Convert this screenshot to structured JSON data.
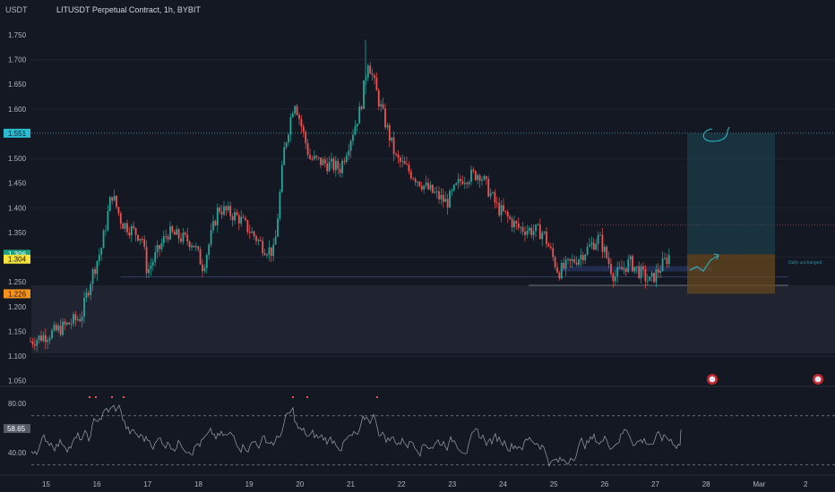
{
  "header": {
    "unit": "USDT",
    "title": "LITUSDT Perpetual Contract, 1h, BYBIT"
  },
  "colors": {
    "background": "#141823",
    "up": "#26a69a",
    "down": "#ef5350",
    "grid": "#1f2433",
    "text": "#b2b5be",
    "rsi_line": "#9aa0aa",
    "resistance": "#5aa7b5",
    "range_up": "#1d4a55",
    "range_down": "#6b4a1e",
    "demand_zone": "#202431",
    "last_price": "#1d9f7f",
    "yellow_tag": "#f5e23a",
    "orange_tag": "#f7931a",
    "cyan_tag": "#2bbbd1"
  },
  "price_axis": {
    "ticks": [
      "1.750",
      "1.700",
      "1.650",
      "1.600",
      "1.550",
      "1.500",
      "1.450",
      "1.400",
      "1.350",
      "1.300",
      "1.250",
      "1.200",
      "1.150",
      "1.100",
      "1.050"
    ],
    "tags": [
      {
        "name": "resistance-tag",
        "label": "1.551",
        "value": 1.551,
        "color": "#2bbbd1",
        "text_color": "#0e1a22"
      },
      {
        "name": "last-price-tag",
        "label": "1.306",
        "value": 1.306,
        "color": "#1d9f7f",
        "text_color": "#ffffff"
      },
      {
        "name": "prev-close-tag",
        "label": "1.304",
        "value": 1.296,
        "color": "#f5e23a",
        "text_color": "#111111"
      },
      {
        "name": "stop-tag",
        "label": "1.226",
        "value": 1.226,
        "color": "#f7931a",
        "text_color": "#111111"
      }
    ]
  },
  "rsi_axis": {
    "ticks": [
      "80.00",
      "40.00"
    ],
    "current": "58.65",
    "current_value": 58.65,
    "upper_band": 70,
    "lower_band": 30
  },
  "time_axis": {
    "labels": [
      "15",
      "16",
      "17",
      "18",
      "19",
      "20",
      "21",
      "22",
      "23",
      "24",
      "25",
      "26",
      "27",
      "28",
      "Mar",
      "2"
    ]
  },
  "annotations": {
    "projection_note": "Daily unchanged",
    "events": [
      "economic-event-1",
      "economic-event-2"
    ]
  },
  "chart_data": {
    "type": "candlestick",
    "symbol": "LITUSDT",
    "interval": "1h",
    "exchange": "BYBIT",
    "ylim": [
      1.08,
      1.76
    ],
    "resistance_level": 1.551,
    "support_levels": [
      1.26,
      1.243
    ],
    "trade_setup": {
      "entry": 1.306,
      "target": 1.551,
      "stop": 1.226
    },
    "anchors": [
      {
        "day": 14.7,
        "price": 1.13
      },
      {
        "day": 15.2,
        "price": 1.15
      },
      {
        "day": 15.7,
        "price": 1.18
      },
      {
        "day": 15.9,
        "price": 1.26
      },
      {
        "day": 16.1,
        "price": 1.32
      },
      {
        "day": 16.3,
        "price": 1.43
      },
      {
        "day": 16.5,
        "price": 1.37
      },
      {
        "day": 16.9,
        "price": 1.34
      },
      {
        "day": 17.0,
        "price": 1.27
      },
      {
        "day": 17.4,
        "price": 1.35
      },
      {
        "day": 17.9,
        "price": 1.33
      },
      {
        "day": 18.1,
        "price": 1.28
      },
      {
        "day": 18.4,
        "price": 1.4
      },
      {
        "day": 18.8,
        "price": 1.38
      },
      {
        "day": 19.3,
        "price": 1.32
      },
      {
        "day": 19.5,
        "price": 1.31
      },
      {
        "day": 19.7,
        "price": 1.52
      },
      {
        "day": 19.9,
        "price": 1.62
      },
      {
        "day": 20.2,
        "price": 1.5
      },
      {
        "day": 20.5,
        "price": 1.49
      },
      {
        "day": 20.8,
        "price": 1.48
      },
      {
        "day": 21.2,
        "price": 1.6
      },
      {
        "day": 21.35,
        "price": 1.7
      },
      {
        "day": 21.55,
        "price": 1.62
      },
      {
        "day": 21.9,
        "price": 1.5
      },
      {
        "day": 22.5,
        "price": 1.44
      },
      {
        "day": 22.9,
        "price": 1.41
      },
      {
        "day": 23.2,
        "price": 1.46
      },
      {
        "day": 23.55,
        "price": 1.47
      },
      {
        "day": 23.9,
        "price": 1.4
      },
      {
        "day": 24.3,
        "price": 1.36
      },
      {
        "day": 24.8,
        "price": 1.35
      },
      {
        "day": 25.1,
        "price": 1.27
      },
      {
        "day": 25.5,
        "price": 1.3
      },
      {
        "day": 25.9,
        "price": 1.34
      },
      {
        "day": 26.2,
        "price": 1.26
      },
      {
        "day": 26.5,
        "price": 1.29
      },
      {
        "day": 26.9,
        "price": 1.25
      },
      {
        "day": 27.3,
        "price": 1.306
      }
    ]
  }
}
